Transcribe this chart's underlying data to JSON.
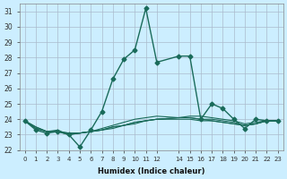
{
  "xlabel": "Humidex (Indice chaleur)",
  "bg_color": "#cceeff",
  "grid_color": "#aabbcc",
  "line_color": "#1a6b5a",
  "xlim": [
    -0.5,
    23.5
  ],
  "ylim": [
    22,
    31.5
  ],
  "yticks": [
    22,
    23,
    24,
    25,
    26,
    27,
    28,
    29,
    30,
    31
  ],
  "xticks": [
    0,
    1,
    2,
    3,
    4,
    5,
    6,
    7,
    8,
    9,
    10,
    11,
    12,
    14,
    15,
    16,
    17,
    18,
    19,
    20,
    21,
    22,
    23
  ],
  "series": [
    {
      "x": [
        0,
        1,
        2,
        3,
        4,
        5,
        6,
        7,
        8,
        9,
        10,
        11,
        12,
        14,
        15,
        16,
        17,
        18,
        19,
        20,
        21,
        22,
        23
      ],
      "y": [
        23.9,
        23.3,
        23.1,
        23.2,
        23.0,
        22.2,
        23.3,
        24.5,
        26.6,
        27.9,
        28.5,
        31.2,
        27.7,
        28.1,
        28.1,
        24.0,
        25.0,
        24.7,
        24.0,
        23.4,
        24.0,
        23.9,
        23.9
      ],
      "marker": "D",
      "markersize": 2.5,
      "lw": 1.0
    },
    {
      "x": [
        0,
        1,
        2,
        3,
        4,
        5,
        6,
        7,
        8,
        9,
        10,
        11,
        12,
        14,
        15,
        16,
        17,
        18,
        19,
        20,
        21,
        22,
        23
      ],
      "y": [
        23.9,
        23.5,
        23.2,
        23.2,
        23.1,
        23.1,
        23.2,
        23.3,
        23.4,
        23.6,
        23.7,
        23.9,
        24.0,
        24.1,
        24.2,
        24.2,
        24.1,
        24.0,
        23.9,
        23.7,
        23.8,
        23.9,
        23.9
      ],
      "marker": null,
      "markersize": 0,
      "lw": 0.8
    },
    {
      "x": [
        0,
        1,
        2,
        3,
        4,
        5,
        6,
        7,
        8,
        9,
        10,
        11,
        12,
        14,
        15,
        16,
        17,
        18,
        19,
        20,
        21,
        22,
        23
      ],
      "y": [
        23.9,
        23.5,
        23.2,
        23.2,
        23.1,
        23.1,
        23.2,
        23.4,
        23.6,
        23.8,
        24.0,
        24.1,
        24.2,
        24.1,
        24.1,
        24.0,
        23.9,
        23.8,
        23.7,
        23.6,
        23.7,
        23.9,
        23.9
      ],
      "marker": null,
      "markersize": 0,
      "lw": 0.8
    },
    {
      "x": [
        0,
        1,
        2,
        3,
        4,
        5,
        6,
        7,
        8,
        9,
        10,
        11,
        12,
        14,
        15,
        16,
        17,
        18,
        19,
        20,
        21,
        22,
        23
      ],
      "y": [
        23.9,
        23.4,
        23.2,
        23.2,
        23.0,
        23.1,
        23.2,
        23.3,
        23.5,
        23.6,
        23.8,
        23.9,
        24.0,
        24.0,
        24.0,
        23.9,
        23.9,
        23.8,
        23.7,
        23.6,
        23.7,
        23.9,
        23.9
      ],
      "marker": null,
      "markersize": 0,
      "lw": 0.8
    },
    {
      "x": [
        0,
        1,
        2,
        3,
        4,
        5,
        6,
        7,
        8,
        9,
        10,
        11,
        12,
        14,
        15,
        16,
        17,
        18,
        19,
        20,
        21,
        22,
        23
      ],
      "y": [
        23.9,
        23.4,
        23.2,
        23.3,
        23.0,
        23.1,
        23.2,
        23.3,
        23.5,
        23.6,
        23.8,
        23.9,
        24.0,
        24.1,
        24.1,
        24.0,
        24.0,
        23.9,
        23.8,
        23.6,
        23.7,
        23.9,
        23.9
      ],
      "marker": null,
      "markersize": 0,
      "lw": 0.8
    }
  ]
}
